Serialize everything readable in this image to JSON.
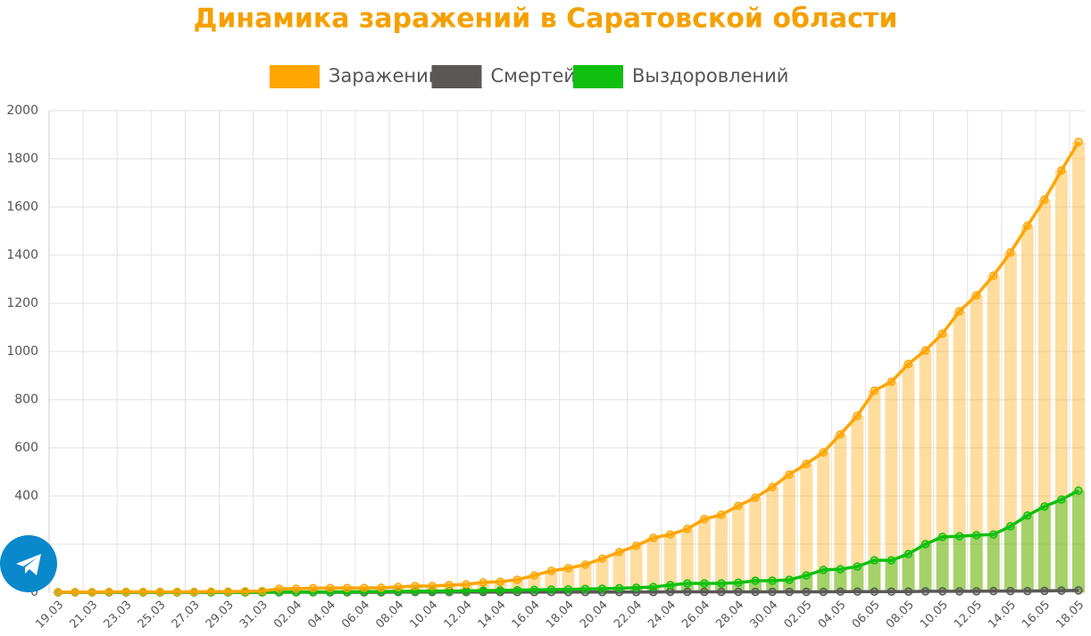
{
  "chart_data": {
    "type": "line-bar",
    "title": "Динамика заражений в Саратовской области",
    "categories": [
      "19.03",
      null,
      "21.03",
      null,
      "23.03",
      null,
      "25.03",
      null,
      "27.03",
      null,
      "29.03",
      null,
      "31.03",
      null,
      "02.04",
      null,
      "04.04",
      null,
      "06.04",
      null,
      "08.04",
      null,
      "10.04",
      null,
      "12.04",
      null,
      "14.04",
      null,
      "16.04",
      null,
      "18.04",
      null,
      "20.04",
      null,
      "22.04",
      null,
      "24.04",
      null,
      "26.04",
      null,
      "28.04",
      null,
      "30.04",
      null,
      "02.05",
      null,
      "04.05",
      null,
      "06.05",
      null,
      "08.05",
      null,
      "10.05",
      null,
      "12.05",
      null,
      "14.05",
      null,
      "16.05",
      null,
      "18.05"
    ],
    "series": [
      {
        "name": "Заражений",
        "color": "#ffa500",
        "values": [
          1,
          1,
          1,
          2,
          2,
          2,
          2,
          2,
          2,
          3,
          3,
          4,
          5,
          15,
          15,
          17,
          18,
          18,
          18,
          19,
          22,
          26,
          26,
          30,
          33,
          41,
          44,
          52,
          70,
          89,
          100,
          115,
          140,
          167,
          193,
          226,
          240,
          263,
          304,
          322,
          359,
          393,
          437,
          489,
          533,
          581,
          656,
          733,
          837,
          874,
          948,
          1004,
          1074,
          1167,
          1233,
          1315,
          1411,
          1522,
          1630,
          1752,
          1870
        ]
      },
      {
        "name": "Смертей",
        "color": "#5b5757",
        "values": [
          0,
          0,
          0,
          0,
          0,
          0,
          0,
          0,
          0,
          0,
          0,
          0,
          0,
          0,
          0,
          0,
          0,
          0,
          0,
          0,
          1,
          1,
          1,
          1,
          1,
          1,
          1,
          1,
          1,
          1,
          1,
          1,
          1,
          1,
          1,
          1,
          2,
          2,
          2,
          2,
          2,
          2,
          2,
          2,
          2,
          2,
          3,
          3,
          3,
          3,
          3,
          4,
          4,
          4,
          4,
          5,
          5,
          5,
          6,
          7,
          8
        ]
      },
      {
        "name": "Выздоровлений",
        "color": "#10c010",
        "values": [
          0,
          0,
          0,
          0,
          0,
          0,
          0,
          0,
          0,
          0,
          0,
          0,
          0,
          1,
          1,
          1,
          2,
          2,
          3,
          3,
          4,
          4,
          5,
          5,
          6,
          7,
          8,
          9,
          10,
          11,
          12,
          14,
          15,
          17,
          19,
          22,
          30,
          37,
          37,
          37,
          40,
          48,
          48,
          52,
          70,
          93,
          96,
          107,
          133,
          133,
          159,
          200,
          230,
          233,
          237,
          240,
          274,
          319,
          356,
          385,
          422
        ]
      }
    ],
    "ylim": [
      0,
      2000
    ],
    "yticks": [
      0,
      200,
      400,
      600,
      800,
      1000,
      1200,
      1400,
      1600,
      1800,
      2000
    ],
    "grid": true
  }
}
